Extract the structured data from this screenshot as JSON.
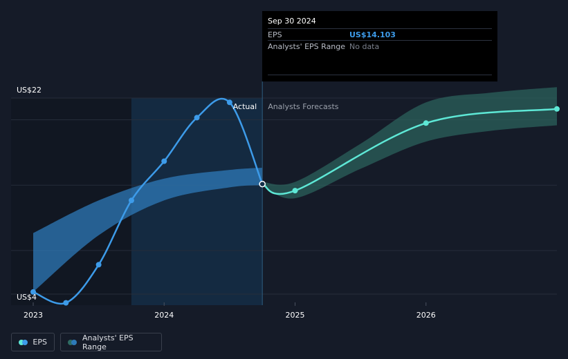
{
  "chart_data": {
    "type": "line",
    "ylim": [
      4,
      22
    ],
    "y_tick_labels": [
      {
        "value": 22,
        "label": "US$22"
      },
      {
        "value": 4,
        "label": "US$4"
      }
    ],
    "x_tick_labels": [
      "2023",
      "2024",
      "2025",
      "2026"
    ],
    "x_tick_years": [
      2023,
      2024,
      2025,
      2026
    ],
    "region_labels": {
      "actual": "Actual",
      "forecast": "Analysts Forecasts"
    },
    "actual_start": 2023.75,
    "actual_end": 2024.75,
    "series": [
      {
        "name": "EPS",
        "color": "#3d9be9",
        "points": [
          {
            "x": 2023.0,
            "y": 4.2
          },
          {
            "x": 2023.25,
            "y": 3.2
          },
          {
            "x": 2023.5,
            "y": 6.7
          },
          {
            "x": 2023.75,
            "y": 12.6
          },
          {
            "x": 2024.0,
            "y": 16.2
          },
          {
            "x": 2024.25,
            "y": 20.2
          },
          {
            "x": 2024.5,
            "y": 21.6
          },
          {
            "x": 2024.75,
            "y": 14.103
          }
        ]
      },
      {
        "name": "EPS Forecast",
        "color": "#5ee8d6",
        "points": [
          {
            "x": 2024.75,
            "y": 14.103
          },
          {
            "x": 2025.0,
            "y": 13.5
          },
          {
            "x": 2026.0,
            "y": 19.7
          },
          {
            "x": 2027.0,
            "y": 21.0
          }
        ]
      }
    ],
    "ranges": [
      {
        "name": "Analysts' EPS Range (past)",
        "color": "#2d7ab8",
        "points": [
          {
            "x": 2023.0,
            "lo": 4.2,
            "hi": 9.6
          },
          {
            "x": 2023.5,
            "lo": 9.4,
            "hi": 12.6
          },
          {
            "x": 2024.0,
            "lo": 12.6,
            "hi": 14.6
          },
          {
            "x": 2024.5,
            "lo": 13.8,
            "hi": 15.4
          },
          {
            "x": 2024.75,
            "lo": 14.0,
            "hi": 15.6
          }
        ]
      },
      {
        "name": "Analysts' EPS Range (forecast)",
        "color": "#2e6b63",
        "points": [
          {
            "x": 2024.75,
            "lo": 14.0,
            "hi": 14.3
          },
          {
            "x": 2025.0,
            "lo": 12.8,
            "hi": 14.3
          },
          {
            "x": 2025.5,
            "lo": 15.5,
            "hi": 17.8
          },
          {
            "x": 2026.0,
            "lo": 18.0,
            "hi": 21.6
          },
          {
            "x": 2026.5,
            "lo": 19.0,
            "hi": 22.5
          },
          {
            "x": 2027.0,
            "lo": 19.5,
            "hi": 23.0
          }
        ]
      }
    ]
  },
  "tooltip": {
    "date": "Sep 30 2024",
    "eps_label": "EPS",
    "eps_value": "US$14.103",
    "range_label": "Analysts' EPS Range",
    "range_value": "No data"
  },
  "legend": {
    "eps_label": "EPS",
    "range_label": "Analysts' EPS Range",
    "eps_colors": [
      "#5ee8d6",
      "#3d9be9"
    ],
    "range_colors": [
      "#2e6b63",
      "#2d7ab8"
    ]
  }
}
